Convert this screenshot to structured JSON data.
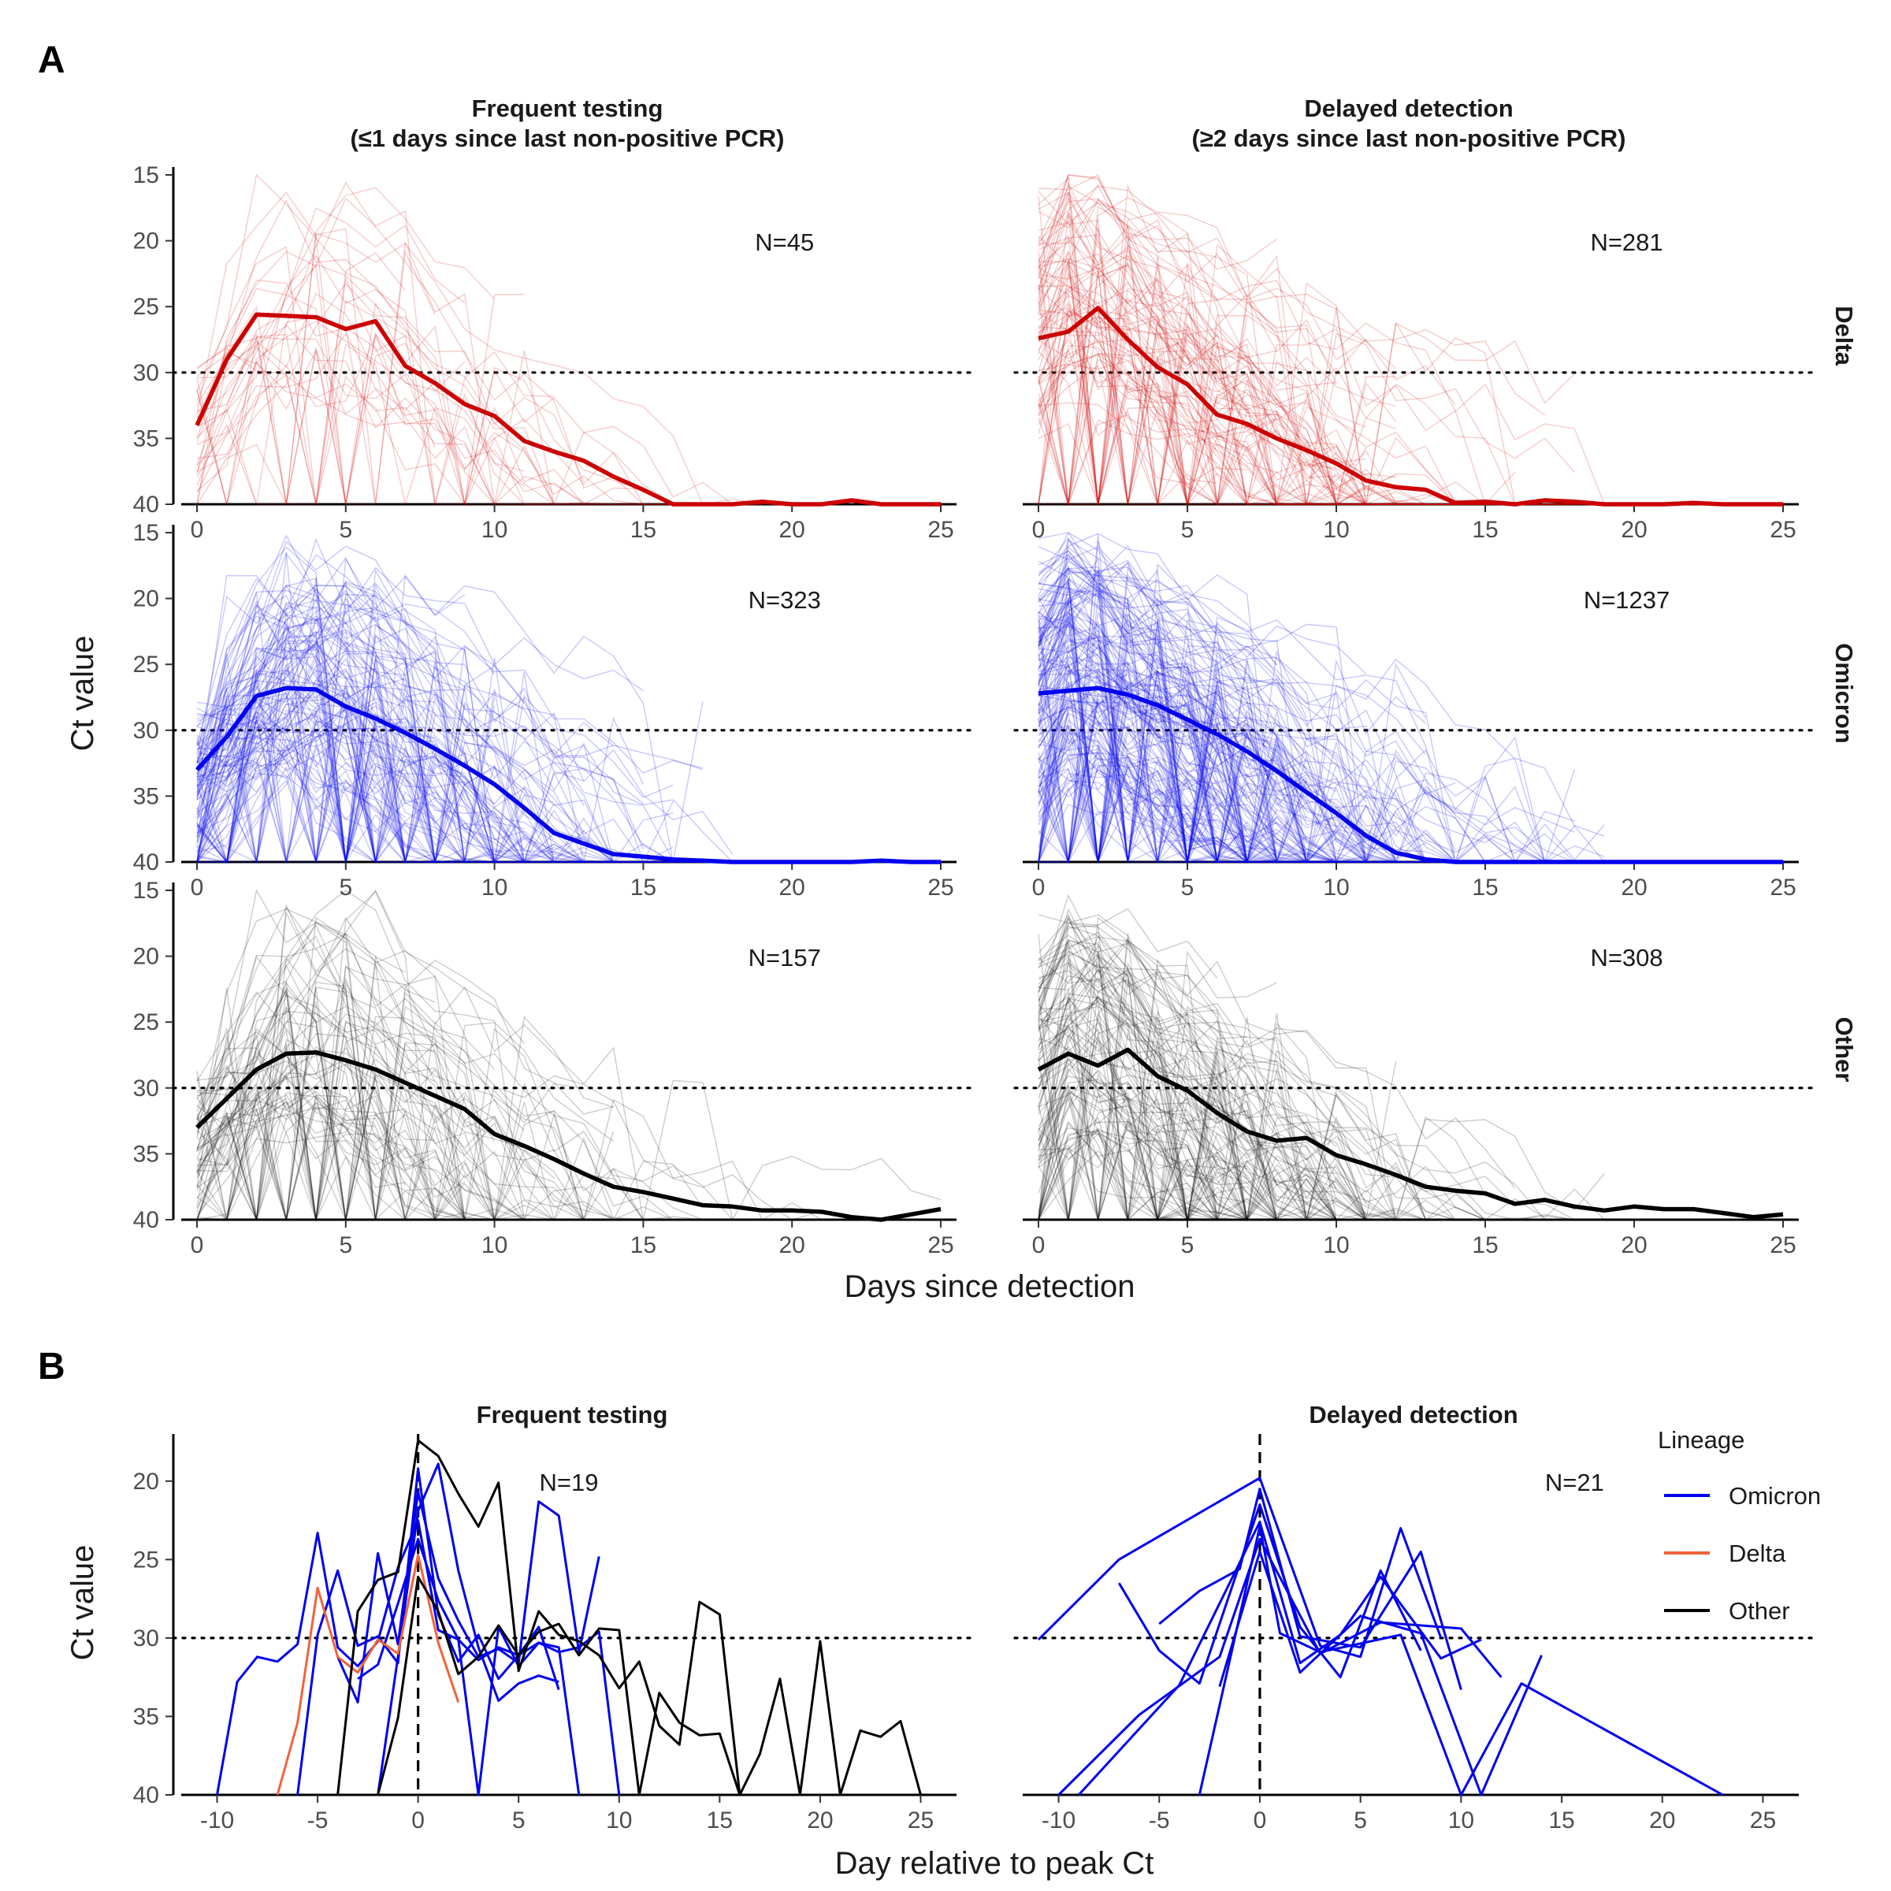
{
  "panel_a": {
    "letter": "A",
    "x_title": "Days since detection",
    "y_title": "Ct value",
    "columns": [
      {
        "title_line1": "Frequent testing",
        "title_line2": "(≤1 days since last non-positive PCR)"
      },
      {
        "title_line1": "Delayed detection",
        "title_line2": "(≥2 days since last non-positive PCR)"
      }
    ],
    "rows": [
      {
        "label": "Delta",
        "color": "#cc0000"
      },
      {
        "label": "Omicron",
        "color": "#0000ee"
      },
      {
        "label": "Other",
        "color": "#000000"
      }
    ],
    "x_ticks": [
      "0",
      "5",
      "10",
      "15",
      "20",
      "25"
    ],
    "y_ticks": [
      "15",
      "20",
      "25",
      "30",
      "35",
      "40"
    ]
  },
  "panel_b": {
    "letter": "B",
    "x_title": "Day relative to peak Ct",
    "y_title": "Ct value",
    "columns": [
      {
        "title": "Frequent testing"
      },
      {
        "title": "Delayed detection"
      }
    ],
    "x_ticks": [
      "-10",
      "-5",
      "0",
      "5",
      "10",
      "15",
      "20",
      "25"
    ],
    "y_ticks": [
      "20",
      "25",
      "30",
      "35",
      "40"
    ],
    "legend": {
      "title": "Lineage",
      "items": [
        {
          "label": "Omicron",
          "color": "#0000ee"
        },
        {
          "label": "Delta",
          "color": "#f0643c"
        },
        {
          "label": "Other",
          "color": "#000000"
        }
      ]
    }
  },
  "chart_data": [
    {
      "type": "line",
      "title": "Frequent testing / Delta",
      "xlabel": "Days since detection",
      "ylabel": "Ct value",
      "xlim": [
        0,
        25
      ],
      "ylim": [
        40,
        15
      ],
      "y_reversed": true,
      "reference_line": 30,
      "annotation": "N=45",
      "series": [
        {
          "name": "Delta",
          "x": [
            0,
            1,
            2,
            3,
            4,
            5,
            6,
            7,
            8,
            9,
            10,
            11,
            12,
            13,
            14,
            15,
            16,
            17,
            18,
            19,
            20,
            21,
            22,
            23,
            24,
            25
          ],
          "values": [
            34,
            29,
            25.6,
            25.7,
            25.8,
            26.7,
            26.1,
            29.5,
            30.8,
            32.4,
            33.3,
            35.2,
            36,
            36.7,
            37.9,
            38.9,
            40,
            40,
            40,
            39.8,
            40,
            40,
            39.7,
            40,
            40,
            40
          ]
        }
      ]
    },
    {
      "type": "line",
      "title": "Delayed detection / Delta",
      "xlabel": "Days since detection",
      "ylabel": "Ct value",
      "xlim": [
        0,
        25
      ],
      "ylim": [
        40,
        15
      ],
      "y_reversed": true,
      "reference_line": 30,
      "annotation": "N=281",
      "series": [
        {
          "name": "Delta",
          "x": [
            0,
            1,
            2,
            3,
            4,
            5,
            6,
            7,
            8,
            9,
            10,
            11,
            12,
            13,
            14,
            15,
            16,
            17,
            18,
            19,
            20,
            21,
            22,
            23,
            24,
            25
          ],
          "values": [
            27.4,
            26.9,
            25.1,
            27.5,
            29.6,
            30.9,
            33.2,
            33.9,
            35,
            35.9,
            36.9,
            38.2,
            38.7,
            38.9,
            39.9,
            39.8,
            40,
            39.7,
            39.8,
            40,
            40,
            40,
            39.9,
            40,
            40,
            40
          ]
        }
      ]
    },
    {
      "type": "line",
      "title": "Frequent testing / Omicron",
      "xlabel": "Days since detection",
      "ylabel": "Ct value",
      "xlim": [
        0,
        25
      ],
      "ylim": [
        40,
        15
      ],
      "y_reversed": true,
      "reference_line": 30,
      "annotation": "N=323",
      "series": [
        {
          "name": "Omicron",
          "x": [
            0,
            1,
            2,
            3,
            4,
            5,
            6,
            7,
            8,
            9,
            10,
            11,
            12,
            13,
            14,
            15,
            16,
            17,
            18,
            19,
            20,
            21,
            22,
            23,
            24,
            25
          ],
          "values": [
            33,
            30.5,
            27.4,
            26.8,
            26.9,
            28.2,
            29.1,
            30.2,
            31.4,
            32.7,
            34.1,
            35.9,
            37.8,
            38.6,
            39.4,
            39.6,
            39.8,
            39.9,
            40,
            40,
            40,
            40,
            40,
            39.9,
            40,
            40
          ]
        }
      ]
    },
    {
      "type": "line",
      "title": "Delayed detection / Omicron",
      "xlabel": "Days since detection",
      "ylabel": "Ct value",
      "xlim": [
        0,
        25
      ],
      "ylim": [
        40,
        15
      ],
      "y_reversed": true,
      "reference_line": 30,
      "annotation": "N=1237",
      "series": [
        {
          "name": "Omicron",
          "x": [
            0,
            1,
            2,
            3,
            4,
            5,
            6,
            7,
            8,
            9,
            10,
            11,
            12,
            13,
            14,
            15,
            16,
            17,
            18,
            19,
            20,
            21,
            22,
            23,
            24,
            25
          ],
          "values": [
            27.2,
            27,
            26.8,
            27.3,
            28.1,
            29.2,
            30.3,
            31.6,
            33.1,
            34.7,
            36.3,
            38,
            39.3,
            39.8,
            40,
            40,
            40,
            40,
            40,
            40,
            40,
            40,
            40,
            40,
            40,
            40
          ]
        }
      ]
    },
    {
      "type": "line",
      "title": "Frequent testing / Other",
      "xlabel": "Days since detection",
      "ylabel": "Ct value",
      "xlim": [
        0,
        25
      ],
      "ylim": [
        40,
        15
      ],
      "y_reversed": true,
      "reference_line": 30,
      "annotation": "N=157",
      "series": [
        {
          "name": "Other",
          "x": [
            0,
            1,
            2,
            3,
            4,
            5,
            6,
            7,
            8,
            9,
            10,
            11,
            12,
            13,
            14,
            15,
            16,
            17,
            18,
            19,
            20,
            21,
            22,
            23,
            24,
            25
          ],
          "values": [
            33,
            30.8,
            28.6,
            27.4,
            27.3,
            27.9,
            28.6,
            29.6,
            30.6,
            31.6,
            33.5,
            34.4,
            35.4,
            36.5,
            37.5,
            37.9,
            38.4,
            38.9,
            39,
            39.3,
            39.3,
            39.4,
            39.8,
            40,
            39.6,
            39.2
          ]
        }
      ]
    },
    {
      "type": "line",
      "title": "Delayed detection / Other",
      "xlabel": "Days since detection",
      "ylabel": "Ct value",
      "xlim": [
        0,
        25
      ],
      "ylim": [
        40,
        15
      ],
      "y_reversed": true,
      "reference_line": 30,
      "annotation": "N=308",
      "series": [
        {
          "name": "Other",
          "x": [
            0,
            1,
            2,
            3,
            4,
            5,
            6,
            7,
            8,
            9,
            10,
            11,
            12,
            13,
            14,
            15,
            16,
            17,
            18,
            19,
            20,
            21,
            22,
            23,
            24,
            25
          ],
          "values": [
            28.6,
            27.4,
            28.3,
            27.1,
            29.1,
            30.2,
            31.9,
            33.3,
            34,
            33.8,
            35.1,
            35.8,
            36.6,
            37.5,
            37.8,
            38,
            38.8,
            38.5,
            39,
            39.3,
            39,
            39.2,
            39.2,
            39.5,
            39.8,
            39.6
          ]
        }
      ]
    },
    {
      "type": "line",
      "title": "Frequent testing",
      "xlabel": "Day relative to peak Ct",
      "ylabel": "Ct value",
      "xlim": [
        -11,
        26
      ],
      "ylim": [
        40,
        17.5
      ],
      "y_reversed": true,
      "reference_line": 30,
      "peak_marker_x": 0,
      "annotation": "N=19",
      "series": [
        {
          "name": "Omicron",
          "x": [
            -10,
            -9,
            -8,
            -7,
            -6,
            -5,
            -4,
            -3,
            -2,
            -1,
            0,
            1,
            2,
            3,
            4,
            5,
            6,
            7
          ],
          "values": [
            40,
            32.8,
            31.2,
            31.5,
            30.4,
            23.3,
            30.6,
            31.8,
            30.2,
            25.5,
            22.5,
            29.5,
            30.1,
            31.4,
            30.6,
            31.1,
            29.3,
            33.3
          ]
        },
        {
          "name": "Omicron",
          "x": [
            -6,
            -5,
            -4,
            -3,
            -2,
            -1,
            0,
            1,
            2,
            3,
            4,
            5,
            6,
            7,
            8,
            9,
            10
          ],
          "values": [
            40,
            29.8,
            25.7,
            30.5,
            29.9,
            31.6,
            19.2,
            28.5,
            31.5,
            29.8,
            32.6,
            31.1,
            30.3,
            30.9,
            30.6,
            29.6,
            40
          ]
        },
        {
          "name": "Omicron",
          "x": [
            -4,
            -3,
            -2,
            -1,
            0,
            1,
            2,
            3,
            4,
            5,
            6,
            7,
            8,
            9
          ],
          "values": [
            31.2,
            34.1,
            24.6,
            30.4,
            20.7,
            26.2,
            28.9,
            31.2,
            30.7,
            31.6,
            21.3,
            22.2,
            30.9,
            24.8
          ]
        },
        {
          "name": "Omicron",
          "x": [
            -3,
            -2,
            -1,
            0,
            1,
            2,
            3,
            4,
            5,
            6,
            7,
            8
          ],
          "values": [
            32.6,
            31.7,
            27.8,
            23.7,
            27.6,
            30.1,
            40,
            29.3,
            31.8,
            30.3,
            30.6,
            40
          ]
        },
        {
          "name": "Omicron",
          "x": [
            -2,
            -1,
            0,
            1,
            2,
            3,
            4,
            5,
            6,
            7
          ],
          "values": [
            40,
            31.2,
            21.9,
            18.9,
            25.7,
            30.6,
            34,
            32.9,
            32.4,
            32.8
          ]
        },
        {
          "name": "Delta",
          "x": [
            -7,
            -6,
            -5,
            -4,
            -3,
            -2,
            -1,
            0,
            1,
            2
          ],
          "values": [
            40,
            35.4,
            26.8,
            31.2,
            32.2,
            30.1,
            31,
            24.7,
            30.3,
            34.1
          ]
        },
        {
          "name": "Other",
          "x": [
            -4,
            -3,
            -2,
            -1,
            0,
            1,
            2,
            3,
            4,
            5,
            6,
            7,
            8,
            9,
            10,
            11,
            12,
            13,
            14,
            15,
            16
          ],
          "values": [
            40,
            28.3,
            26.3,
            25.8,
            17.4,
            18.4,
            20.8,
            22.9,
            20.1,
            32.1,
            28.3,
            29.8,
            30.2,
            31.1,
            33.2,
            31.5,
            35.6,
            36.8,
            27.7,
            28.5,
            40
          ]
        },
        {
          "name": "Other",
          "x": [
            -2,
            -1,
            0,
            1,
            2,
            3,
            4,
            5,
            6,
            7,
            8,
            9,
            10,
            11,
            12,
            13,
            14,
            15,
            16,
            17,
            18,
            19,
            20,
            21,
            22,
            23,
            24,
            25
          ],
          "values": [
            40,
            35.1,
            26.1,
            28.3,
            32.3,
            31.2,
            29.2,
            31.1,
            29.6,
            29.1,
            31.1,
            29.4,
            29.5,
            40,
            33.5,
            35.4,
            36.2,
            36.1,
            40,
            37.4,
            32.6,
            40,
            30.2,
            40,
            35.9,
            36.3,
            35.3,
            40
          ]
        }
      ]
    },
    {
      "type": "line",
      "title": "Delayed detection",
      "xlabel": "Day relative to peak Ct",
      "ylabel": "Ct value",
      "xlim": [
        -11,
        26
      ],
      "ylim": [
        40,
        17.5
      ],
      "y_reversed": true,
      "reference_line": 30,
      "peak_marker_x": 0,
      "annotation": "N=21",
      "series": [
        {
          "name": "Omicron",
          "x": [
            -11,
            -7,
            0,
            3,
            5,
            7,
            9
          ],
          "values": [
            30.1,
            25,
            19.8,
            30.5,
            31.2,
            23,
            30
          ]
        },
        {
          "name": "Omicron",
          "x": [
            -7,
            -5,
            -3,
            0,
            2,
            4,
            6,
            8
          ],
          "values": [
            26.5,
            30.8,
            32.9,
            21.5,
            29.3,
            32.5,
            25.7,
            30.8
          ]
        },
        {
          "name": "Omicron",
          "x": [
            -10,
            -6,
            -2,
            0,
            3,
            6,
            10,
            12
          ],
          "values": [
            40,
            34.9,
            31.2,
            23.7,
            31,
            29,
            29.4,
            32.5
          ]
        },
        {
          "name": "Omicron",
          "x": [
            -5,
            -3,
            -1,
            0,
            2,
            5,
            8,
            10
          ],
          "values": [
            29.1,
            27,
            25.6,
            20.5,
            29.9,
            30.6,
            24.5,
            33.3
          ]
        },
        {
          "name": "Omicron",
          "x": [
            -9,
            -4,
            0,
            2,
            4,
            6,
            9,
            11
          ],
          "values": [
            40,
            33,
            22.6,
            31.6,
            29.8,
            26.1,
            31.3,
            30.1
          ]
        },
        {
          "name": "Omicron",
          "x": [
            -3,
            0,
            1,
            3,
            7,
            10,
            13,
            23
          ],
          "values": [
            40,
            22.9,
            29.7,
            30.9,
            29.8,
            40,
            32.9,
            40
          ]
        },
        {
          "name": "Omicron",
          "x": [
            -2,
            0,
            2,
            5,
            8,
            11,
            14
          ],
          "values": [
            33.1,
            24.5,
            32.2,
            28.6,
            29.7,
            40,
            31.1
          ]
        }
      ]
    }
  ]
}
